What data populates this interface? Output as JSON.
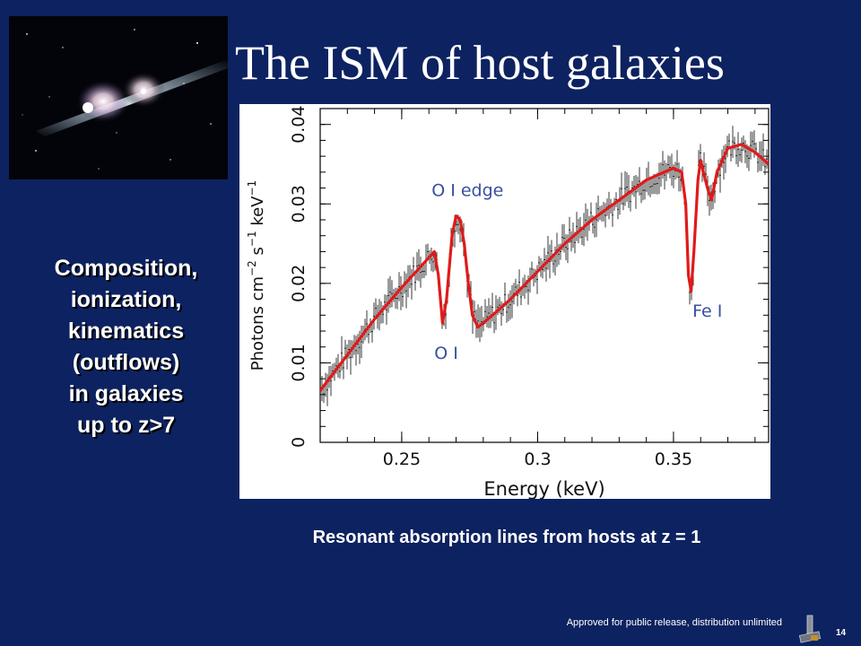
{
  "slide": {
    "title": "The ISM of host galaxies",
    "side_text": [
      "Composition,",
      "ionization,",
      "kinematics",
      "(outflows)",
      "in galaxies",
      "up to z>7"
    ],
    "caption": "Resonant absorption lines from hosts at z = 1",
    "footer": "Approved for public release, distribution unlimited",
    "page_number": "14"
  },
  "chart_data": {
    "type": "line",
    "xlabel": "Energy (keV)",
    "ylabel_parts": [
      "Photons cm",
      "−2",
      " s",
      "−1",
      " keV",
      "−1"
    ],
    "xlim": [
      0.22,
      0.385
    ],
    "ylim": [
      0,
      0.042
    ],
    "x_ticks": [
      0.25,
      0.3,
      0.35
    ],
    "x_tick_labels": [
      "0.25",
      "0.3",
      "0.35"
    ],
    "y_ticks": [
      0,
      0.01,
      0.02,
      0.03,
      0.04
    ],
    "y_tick_labels": [
      "0",
      "0.01",
      "0.02",
      "0.03",
      "0.04"
    ],
    "colors": {
      "model": "#e01a1a",
      "data": "#222222",
      "annotation": "#3850a0"
    },
    "annotations": [
      {
        "text": "O I edge",
        "x": 0.261,
        "y": 0.031
      },
      {
        "text": "O I",
        "x": 0.262,
        "y": 0.0105
      },
      {
        "text": "Fe I",
        "x": 0.357,
        "y": 0.0158
      }
    ],
    "series": [
      {
        "x": [
          0.22,
          0.23,
          0.24,
          0.25,
          0.258,
          0.262,
          0.2635,
          0.265,
          0.2665,
          0.2685,
          0.27,
          0.2715,
          0.273,
          0.2745,
          0.276,
          0.278,
          0.28,
          0.285,
          0.29,
          0.3,
          0.31,
          0.32,
          0.33,
          0.34,
          0.35,
          0.353,
          0.3545,
          0.3555,
          0.3565,
          0.3575,
          0.359,
          0.36,
          0.361,
          0.3625,
          0.364,
          0.366,
          0.37,
          0.375,
          0.38,
          0.385
        ],
        "y": [
          0.0065,
          0.011,
          0.0155,
          0.0195,
          0.0225,
          0.024,
          0.021,
          0.015,
          0.018,
          0.026,
          0.0285,
          0.028,
          0.025,
          0.02,
          0.016,
          0.0145,
          0.015,
          0.0165,
          0.018,
          0.0215,
          0.025,
          0.028,
          0.0305,
          0.033,
          0.0345,
          0.034,
          0.03,
          0.021,
          0.019,
          0.024,
          0.033,
          0.0355,
          0.034,
          0.032,
          0.0305,
          0.034,
          0.037,
          0.0375,
          0.0365,
          0.035
        ]
      }
    ]
  }
}
